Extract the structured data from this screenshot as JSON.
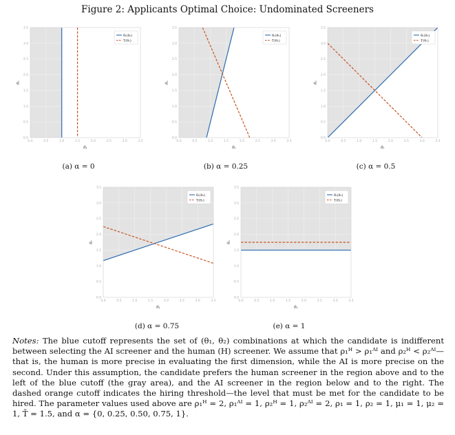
{
  "figure": {
    "title": "Figure 2: Applicants Optimal Choice: Undominated Screeners"
  },
  "legend": {
    "blue": "θ̄₁(θ₁)",
    "orange": "T(θ₁)"
  },
  "axes": {
    "xlabel": "θ₁",
    "ylabel": "θ₂",
    "xticks": [
      "0.0",
      "0.5",
      "1.0",
      "1.5",
      "2.0",
      "2.5",
      "3.0",
      "3.5"
    ],
    "yticks": [
      "0.0",
      "0.5",
      "1.0",
      "1.5",
      "2.0",
      "2.5",
      "3.0",
      "3.5"
    ]
  },
  "colors": {
    "blue": "#2c6bb0",
    "orange": "#c8541e",
    "gray_region": "#e3e3e3"
  },
  "chart_data": [
    {
      "type": "line",
      "caption": "(a) α = 0",
      "xlim": [
        0,
        3.5
      ],
      "ylim": [
        0,
        3.5
      ],
      "series": [
        {
          "name": "θ̄₁(θ₁)",
          "style": "solid",
          "vertical_x": 1.0
        },
        {
          "name": "T(θ₁)",
          "style": "dashed",
          "vertical_x": 1.5
        }
      ],
      "gray_region": "left"
    },
    {
      "type": "line",
      "caption": "(b) α = 0.25",
      "xlim": [
        0,
        3.5
      ],
      "ylim": [
        0,
        3.5
      ],
      "series": [
        {
          "name": "θ̄₁(θ₁)",
          "style": "solid",
          "x": [
            0.875,
            1.75
          ],
          "y": [
            0,
            3.5
          ]
        },
        {
          "name": "T(θ₁)",
          "style": "dashed",
          "x": [
            0.75,
            2.25
          ],
          "y": [
            3.5,
            0
          ]
        }
      ],
      "gray_region": "above-left"
    },
    {
      "type": "line",
      "caption": "(c) α = 0.5",
      "xlim": [
        0,
        3.5
      ],
      "ylim": [
        0,
        3.5
      ],
      "series": [
        {
          "name": "θ̄₁(θ₁)",
          "style": "solid",
          "x": [
            0,
            3.5
          ],
          "y": [
            0,
            3.5
          ]
        },
        {
          "name": "T(θ₁)",
          "style": "dashed",
          "x": [
            0,
            3.0
          ],
          "y": [
            3.0,
            0
          ]
        }
      ],
      "gray_region": "above-left"
    },
    {
      "type": "line",
      "caption": "(d) α = 0.75",
      "xlim": [
        0,
        3.5
      ],
      "ylim": [
        0,
        3.5
      ],
      "series": [
        {
          "name": "θ̄₁(θ₁)",
          "style": "solid",
          "x": [
            0,
            3.5
          ],
          "y": [
            1.167,
            2.333
          ]
        },
        {
          "name": "T(θ₁)",
          "style": "dashed",
          "x": [
            0,
            3.5
          ],
          "y": [
            2.25,
            1.083
          ]
        }
      ],
      "gray_region": "above"
    },
    {
      "type": "line",
      "caption": "(e) α = 1",
      "xlim": [
        0,
        3.5
      ],
      "ylim": [
        0,
        3.5
      ],
      "series": [
        {
          "name": "θ̄₁(θ₁)",
          "style": "solid",
          "x": [
            0,
            3.5
          ],
          "y": [
            1.5,
            1.5
          ]
        },
        {
          "name": "T(θ₁)",
          "style": "dashed",
          "x": [
            0,
            3.5
          ],
          "y": [
            1.75,
            1.75
          ]
        }
      ],
      "gray_region": "above"
    }
  ],
  "notes": {
    "label": "Notes:",
    "p1": "The blue cutoff represents the set of (θ₁, θ₂) combinations at which the candidate is indifferent between selecting the AI screener and the human (H) screener. We assume that ρ₁ᴴ > ρ₁ᴬᴵ and ρ₂ᴴ < ρ₂ᴬᴵ—that is, the human is more precise in evaluating the first dimension, while the AI is more precise on the second. Under this assumption, the candidate prefers the human screener in the region above and to the left of the blue cutoff (the gray area), and the AI screener in the region below and to the right. The dashed orange cutoff indicates the hiring threshold—the level that must be met for the candidate to be hired. The parameter values used above are ρ₁ᴴ = 2, ρ₁ᴬᴵ = 1, ρ₂ᴴ = 1, ρ₂ᴬᴵ = 2, ρ₁ = 1, ρ₂ = 1, μ₁ = 1, μ₂ = 1, T̄ = 1.5, and α = {0, 0.25, 0.50, 0.75, 1}."
  }
}
